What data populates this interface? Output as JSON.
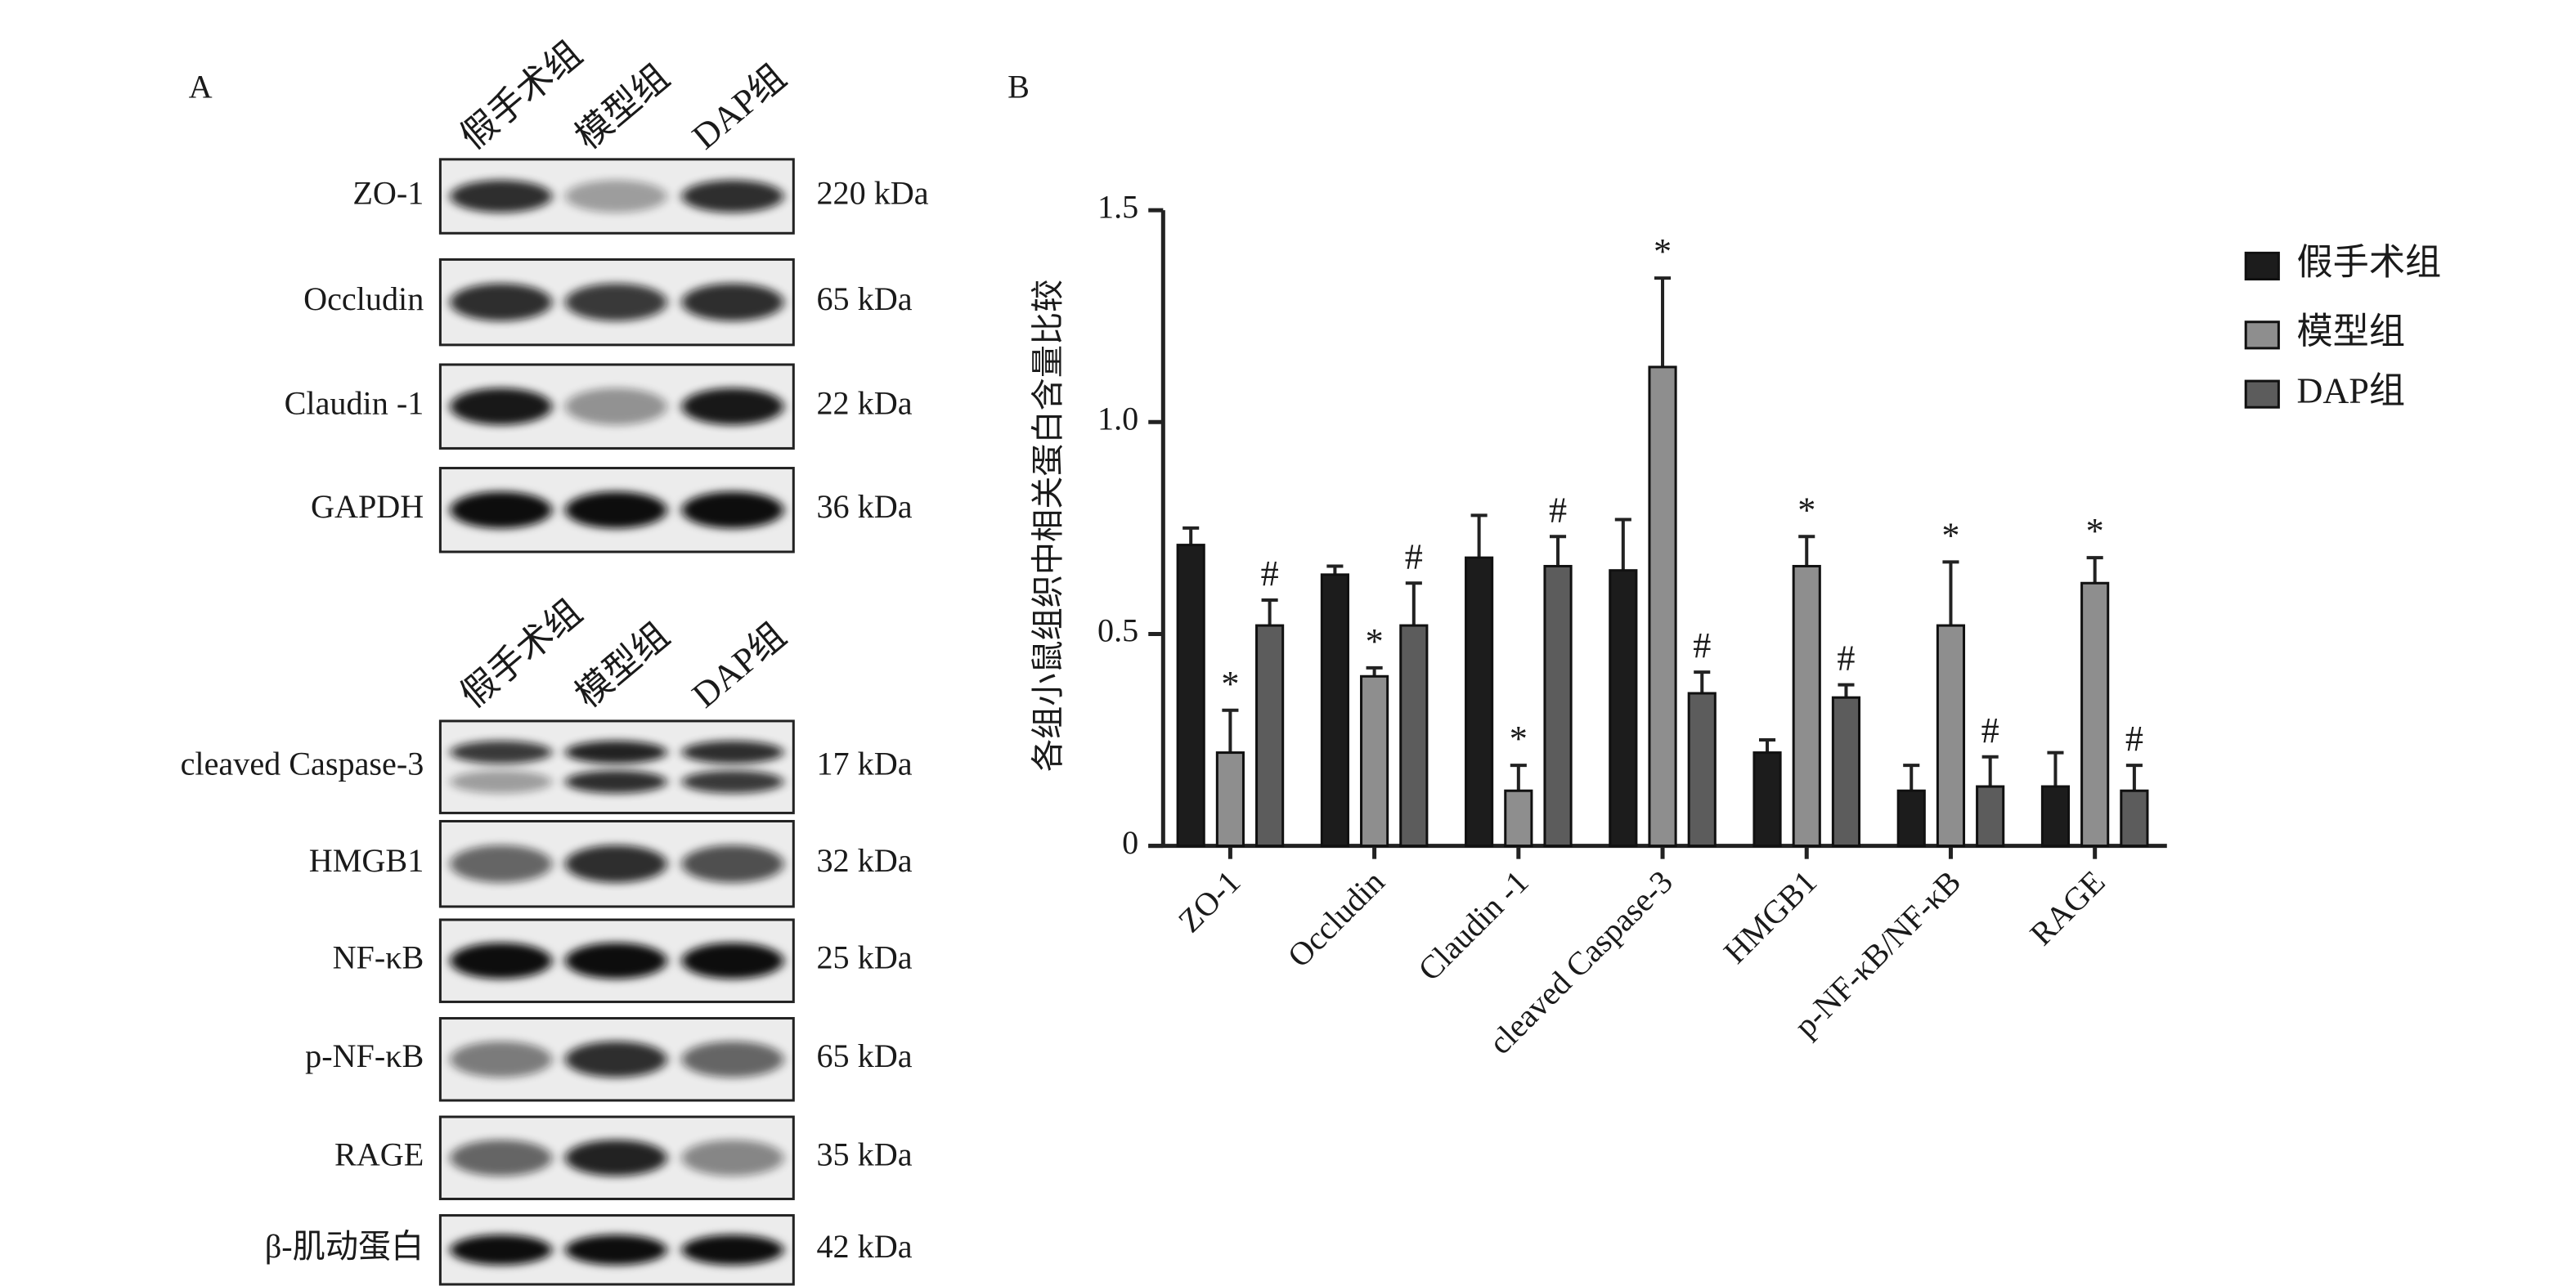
{
  "panel_a": {
    "label": "A",
    "groups": [
      {
        "lanes": [
          "假手术组",
          "模型组",
          "DAP组"
        ],
        "rows": [
          {
            "name": "ZO-1",
            "kda": "220 kDa"
          },
          {
            "name": "Occludin",
            "kda": "65 kDa"
          },
          {
            "name": "Claudin -1",
            "kda": "22 kDa"
          },
          {
            "name": "GAPDH",
            "kda": "36 kDa"
          }
        ]
      },
      {
        "lanes": [
          "假手术组",
          "模型组",
          "DAP组"
        ],
        "rows": [
          {
            "name": "cleaved Caspase-3",
            "kda": "17 kDa"
          },
          {
            "name": "HMGB1",
            "kda": "32 kDa"
          },
          {
            "name": "NF-κB",
            "kda": "25 kDa"
          },
          {
            "name": "p-NF-κB",
            "kda": "65 kDa"
          },
          {
            "name": "RAGE",
            "kda": "35 kDa"
          },
          {
            "name": "β-肌动蛋白",
            "kda": "42 kDa"
          }
        ]
      }
    ]
  },
  "chart_data": {
    "type": "bar",
    "panel_label": "B",
    "y_label": "各组小鼠组织中相关蛋白含量比较",
    "categories": [
      "ZO-1",
      "Occludin",
      "Claudin -1",
      "cleaved Caspase-3",
      "HMGB1",
      "p-NF-κB/NF-κB",
      "RAGE"
    ],
    "series": [
      {
        "name": "假手术组",
        "color": "#1c1c1c",
        "values": [
          0.71,
          0.64,
          0.68,
          0.65,
          0.22,
          0.13,
          0.14
        ],
        "errors": [
          0.04,
          0.02,
          0.1,
          0.12,
          0.03,
          0.06,
          0.08
        ],
        "markers": [
          null,
          null,
          null,
          null,
          null,
          null,
          null
        ]
      },
      {
        "name": "模型组",
        "color": "#8e8e8e",
        "values": [
          0.22,
          0.4,
          0.13,
          1.13,
          0.66,
          0.52,
          0.62
        ],
        "errors": [
          0.1,
          0.02,
          0.06,
          0.21,
          0.07,
          0.15,
          0.06
        ],
        "markers": [
          "*",
          "*",
          "*",
          "*",
          "*",
          "*",
          "*"
        ]
      },
      {
        "name": "DAP组",
        "color": "#5c5c5c",
        "values": [
          0.52,
          0.52,
          0.66,
          0.36,
          0.35,
          0.14,
          0.13
        ],
        "errors": [
          0.06,
          0.1,
          0.07,
          0.05,
          0.03,
          0.07,
          0.06
        ],
        "markers": [
          "#",
          "#",
          "#",
          "#",
          "#",
          "#",
          "#"
        ]
      }
    ],
    "ylim": [
      0,
      1.5
    ],
    "yticks": [
      0,
      0.5,
      {
        "value": 1,
        "label": "1.0"
      },
      1.5
    ],
    "legend": "top-right"
  }
}
